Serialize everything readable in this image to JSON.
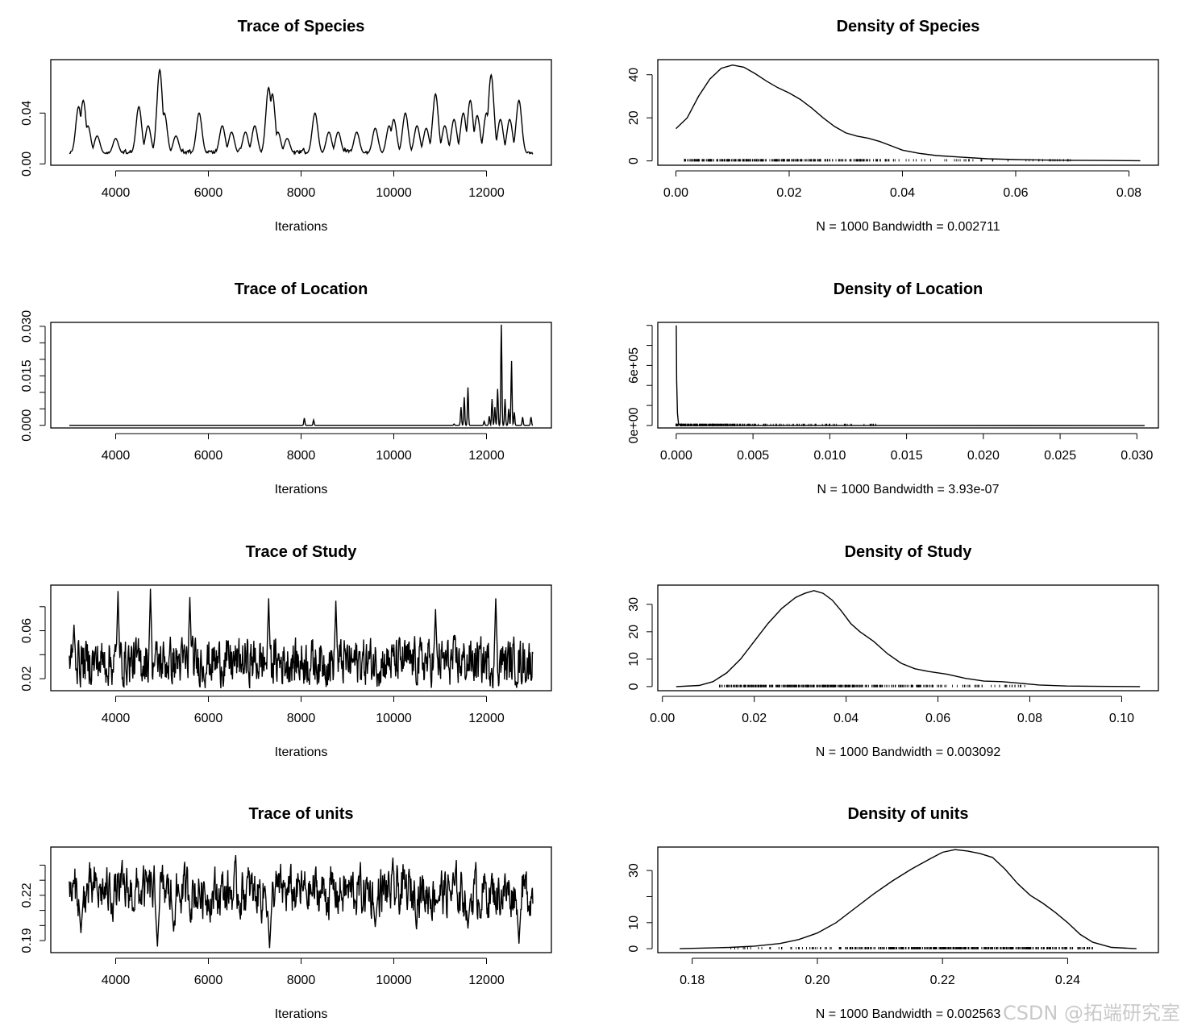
{
  "watermark": "CSDN @拓端研究室",
  "chart_data": [
    {
      "id": "trace-species",
      "type": "line",
      "title": "Trace of Species",
      "xlabel": "Iterations",
      "ylabel": "",
      "xlim": [
        2600,
        13400
      ],
      "ylim": [
        -0.001,
        0.082
      ],
      "xticks": [
        4000,
        6000,
        8000,
        10000,
        12000
      ],
      "xtick_labels": [
        "4000",
        "6000",
        "8000",
        "10000",
        "12000"
      ],
      "yticks": [
        0.0,
        0.04
      ],
      "ytick_labels": [
        "0.00",
        "0.04"
      ],
      "x_start": 3000,
      "x_end": 13000,
      "series": [
        {
          "name": "Species",
          "peaks": [
            [
              3200,
              0.045
            ],
            [
              3300,
              0.05
            ],
            [
              3400,
              0.03
            ],
            [
              3600,
              0.022
            ],
            [
              4000,
              0.02
            ],
            [
              4500,
              0.045
            ],
            [
              4700,
              0.03
            ],
            [
              4950,
              0.074
            ],
            [
              5050,
              0.04
            ],
            [
              5300,
              0.022
            ],
            [
              5800,
              0.04
            ],
            [
              6300,
              0.03
            ],
            [
              6500,
              0.025
            ],
            [
              6800,
              0.025
            ],
            [
              7000,
              0.03
            ],
            [
              7300,
              0.06
            ],
            [
              7380,
              0.055
            ],
            [
              7500,
              0.025
            ],
            [
              7700,
              0.02
            ],
            [
              8300,
              0.04
            ],
            [
              8600,
              0.025
            ],
            [
              8800,
              0.025
            ],
            [
              9200,
              0.025
            ],
            [
              9600,
              0.028
            ],
            [
              9900,
              0.03
            ],
            [
              10000,
              0.035
            ],
            [
              10250,
              0.04
            ],
            [
              10500,
              0.03
            ],
            [
              10700,
              0.028
            ],
            [
              10900,
              0.055
            ],
            [
              11100,
              0.03
            ],
            [
              11300,
              0.035
            ],
            [
              11500,
              0.04
            ],
            [
              11650,
              0.05
            ],
            [
              11800,
              0.038
            ],
            [
              12000,
              0.04
            ],
            [
              12100,
              0.07
            ],
            [
              12300,
              0.035
            ],
            [
              12500,
              0.035
            ],
            [
              12700,
              0.05
            ]
          ],
          "base": 0.008,
          "noise": 0.006
        }
      ]
    },
    {
      "id": "density-species",
      "type": "line",
      "title": "Density of Species",
      "xlabel": "N = 1000   Bandwidth = 0.002711",
      "ylabel": "",
      "xlim": [
        -0.0032,
        0.0852
      ],
      "ylim": [
        -2,
        47
      ],
      "xticks": [
        0.0,
        0.02,
        0.04,
        0.06,
        0.08
      ],
      "xtick_labels": [
        "0.00",
        "0.02",
        "0.04",
        "0.06",
        "0.08"
      ],
      "yticks": [
        0,
        20,
        40
      ],
      "ytick_labels": [
        "0",
        "20",
        "40"
      ],
      "series": [
        {
          "name": "density",
          "x": [
            0.0,
            0.002,
            0.004,
            0.006,
            0.008,
            0.01,
            0.012,
            0.014,
            0.016,
            0.018,
            0.02,
            0.022,
            0.024,
            0.026,
            0.028,
            0.03,
            0.032,
            0.034,
            0.036,
            0.038,
            0.04,
            0.043,
            0.046,
            0.05,
            0.055,
            0.06,
            0.065,
            0.07,
            0.075,
            0.082
          ],
          "y": [
            15,
            20,
            30,
            38,
            43,
            44.5,
            43.5,
            40.5,
            37,
            34,
            31.5,
            28.5,
            24.5,
            20,
            16,
            13,
            11.5,
            10.5,
            9,
            7,
            5,
            3.5,
            2.5,
            1.8,
            1.0,
            0.6,
            0.4,
            0.3,
            0.2,
            0.1
          ]
        }
      ],
      "rug_range": [
        0.0015,
        0.07
      ],
      "rug_y": 0.3
    },
    {
      "id": "trace-location",
      "type": "line",
      "title": "Trace of Location",
      "xlabel": "Iterations",
      "ylabel": "",
      "xlim": [
        2600,
        13400
      ],
      "ylim": [
        -0.0008,
        0.0312
      ],
      "xticks": [
        4000,
        6000,
        8000,
        10000,
        12000
      ],
      "xtick_labels": [
        "4000",
        "6000",
        "8000",
        "10000",
        "12000"
      ],
      "yticks": [
        0.0,
        0.005,
        0.01,
        0.015,
        0.02,
        0.025,
        0.03
      ],
      "ytick_labels": [
        "0.000",
        "",
        "",
        "0.015",
        "",
        "",
        "0.030"
      ],
      "x_start": 3000,
      "x_end": 13000,
      "series": [
        {
          "name": "Location",
          "peaks": [
            [
              8070,
              0.0022
            ],
            [
              8270,
              0.0016
            ],
            [
              11300,
              0.0004
            ],
            [
              11450,
              0.0055
            ],
            [
              11520,
              0.0085
            ],
            [
              11600,
              0.0115
            ],
            [
              11950,
              0.0012
            ],
            [
              12060,
              0.0028
            ],
            [
              12120,
              0.008
            ],
            [
              12180,
              0.0055
            ],
            [
              12240,
              0.011
            ],
            [
              12320,
              0.0305
            ],
            [
              12400,
              0.008
            ],
            [
              12480,
              0.005
            ],
            [
              12540,
              0.0195
            ],
            [
              12600,
              0.004
            ],
            [
              12780,
              0.0025
            ],
            [
              12960,
              0.0025
            ]
          ],
          "base": 0.0,
          "noise": 0.0
        }
      ]
    },
    {
      "id": "density-location",
      "type": "line",
      "title": "Density of Location",
      "xlabel": "N = 1000   Bandwidth = 3.93e-07",
      "ylabel": "",
      "xlim": [
        -0.0012,
        0.0314
      ],
      "ylim": [
        -25000,
        1030000
      ],
      "xticks": [
        0.0,
        0.005,
        0.01,
        0.015,
        0.02,
        0.025,
        0.03
      ],
      "xtick_labels": [
        "0.000",
        "0.005",
        "0.010",
        "0.015",
        "0.020",
        "0.025",
        "0.030"
      ],
      "yticks": [
        0,
        200000,
        400000,
        600000,
        800000,
        1000000
      ],
      "ytick_labels": [
        "0e+00",
        "",
        "",
        "6e+05",
        "",
        ""
      ],
      "series": [
        {
          "name": "density",
          "x": [
            0.0,
            1e-05,
            3e-05,
            8e-05,
            0.00015,
            0.0003,
            0.0305
          ],
          "y": [
            1000000,
            900000,
            450000,
            120000,
            15000,
            1000,
            0
          ]
        }
      ],
      "rug_range": [
        0.0,
        0.0135
      ],
      "rug_y": 5000
    },
    {
      "id": "trace-study",
      "type": "line",
      "title": "Trace of Study",
      "xlabel": "Iterations",
      "ylabel": "",
      "xlim": [
        2600,
        13400
      ],
      "ylim": [
        0.01,
        0.098
      ],
      "xticks": [
        4000,
        6000,
        8000,
        10000,
        12000
      ],
      "xtick_labels": [
        "4000",
        "6000",
        "8000",
        "10000",
        "12000"
      ],
      "yticks": [
        0.02,
        0.04,
        0.06,
        0.08
      ],
      "ytick_labels": [
        "0.02",
        "",
        "0.06",
        ""
      ],
      "x_start": 3000,
      "x_end": 13000,
      "series": [
        {
          "name": "Study",
          "peaks": [
            [
              4050,
              0.093
            ],
            [
              4750,
              0.095
            ],
            [
              5600,
              0.088
            ],
            [
              7300,
              0.087
            ],
            [
              8750,
              0.085
            ],
            [
              12200,
              0.087
            ],
            [
              10900,
              0.078
            ],
            [
              3100,
              0.065
            ]
          ],
          "base": 0.034,
          "noise": 0.034
        }
      ]
    },
    {
      "id": "density-study",
      "type": "line",
      "title": "Density of Study",
      "xlabel": "N = 1000   Bandwidth = 0.003092",
      "ylabel": "",
      "xlim": [
        -0.001,
        0.108
      ],
      "ylim": [
        -1.5,
        37
      ],
      "xticks": [
        0.0,
        0.02,
        0.04,
        0.06,
        0.08,
        0.1
      ],
      "xtick_labels": [
        "0.00",
        "0.02",
        "0.04",
        "0.06",
        "0.08",
        "0.10"
      ],
      "yticks": [
        0,
        10,
        20,
        30
      ],
      "ytick_labels": [
        "0",
        "10",
        "20",
        "30"
      ],
      "series": [
        {
          "name": "density",
          "x": [
            0.003,
            0.008,
            0.011,
            0.014,
            0.017,
            0.02,
            0.023,
            0.026,
            0.029,
            0.031,
            0.033,
            0.035,
            0.037,
            0.039,
            0.041,
            0.043,
            0.046,
            0.049,
            0.052,
            0.055,
            0.058,
            0.062,
            0.066,
            0.07,
            0.074,
            0.078,
            0.082,
            0.088,
            0.095,
            0.104
          ],
          "y": [
            0,
            0.4,
            1.8,
            5,
            10,
            16.5,
            23,
            28.5,
            32.5,
            34,
            35,
            34,
            31.5,
            27.5,
            23,
            20,
            16.5,
            12,
            8.5,
            6.5,
            5.5,
            4.5,
            3,
            2,
            1.8,
            1.2,
            0.6,
            0.2,
            0.1,
            0
          ]
        }
      ],
      "rug_range": [
        0.0125,
        0.079
      ],
      "rug_y": 0.2
    },
    {
      "id": "trace-units",
      "type": "line",
      "title": "Trace of units",
      "xlabel": "Iterations",
      "ylabel": "",
      "xlim": [
        2600,
        13400
      ],
      "ylim": [
        0.182,
        0.252
      ],
      "xticks": [
        4000,
        6000,
        8000,
        10000,
        12000
      ],
      "xtick_labels": [
        "4000",
        "6000",
        "8000",
        "10000",
        "12000"
      ],
      "yticks": [
        0.19,
        0.2,
        0.21,
        0.22,
        0.23,
        0.24
      ],
      "ytick_labels": [
        "0.19",
        "",
        "",
        "0.22",
        "",
        ""
      ],
      "x_start": 3000,
      "x_end": 13000,
      "series": [
        {
          "name": "units",
          "troughs": [
            [
              4900,
              0.186
            ],
            [
              7320,
              0.185
            ],
            [
              12700,
              0.188
            ],
            [
              3250,
              0.195
            ],
            [
              5250,
              0.196
            ],
            [
              9600,
              0.199
            ],
            [
              11600,
              0.198
            ]
          ],
          "base": 0.222,
          "noise": 0.026
        }
      ]
    },
    {
      "id": "density-units",
      "type": "line",
      "title": "Density of units",
      "xlabel": "N = 1000   Bandwidth = 0.002563",
      "ylabel": "",
      "xlim": [
        0.1745,
        0.2545
      ],
      "ylim": [
        -1.5,
        39
      ],
      "xticks": [
        0.18,
        0.2,
        0.22,
        0.24
      ],
      "xtick_labels": [
        "0.18",
        "0.20",
        "0.22",
        "0.24"
      ],
      "yticks": [
        0,
        10,
        20,
        30
      ],
      "ytick_labels": [
        "0",
        "10",
        "",
        "30"
      ],
      "series": [
        {
          "name": "density",
          "x": [
            0.178,
            0.186,
            0.19,
            0.194,
            0.197,
            0.2,
            0.203,
            0.206,
            0.209,
            0.212,
            0.215,
            0.218,
            0.22,
            0.222,
            0.224,
            0.226,
            0.228,
            0.23,
            0.232,
            0.234,
            0.236,
            0.238,
            0.24,
            0.242,
            0.244,
            0.247,
            0.251
          ],
          "y": [
            0,
            0.5,
            1,
            2,
            3.5,
            6,
            10,
            15.5,
            21,
            26,
            30.5,
            34.5,
            37,
            38,
            37.5,
            36.5,
            35,
            30.5,
            25,
            20.5,
            17.5,
            14,
            10,
            5.5,
            2.5,
            0.5,
            0
          ]
        }
      ],
      "rug_range": [
        0.186,
        0.244
      ],
      "rug_y": 0.2
    }
  ]
}
